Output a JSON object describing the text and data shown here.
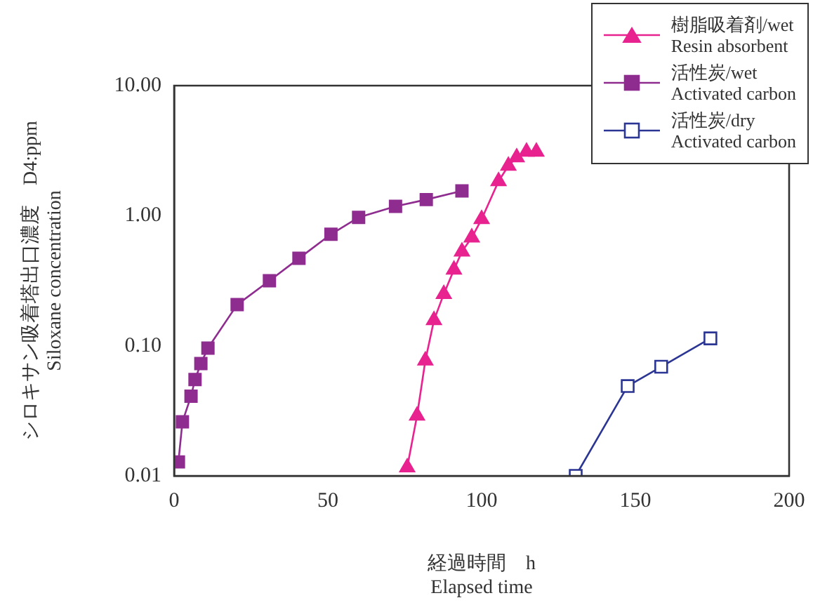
{
  "chart_data": {
    "type": "line",
    "xlabel": "経過時間　h\nElapsed time",
    "ylabel": "シロキサン吸着塔出口濃度　D4:ppm\nSiloxane concentration",
    "log": "y",
    "xlim": [
      0,
      200
    ],
    "xticks": [
      0,
      50,
      100,
      150,
      200
    ],
    "ylim": [
      0.01,
      10
    ],
    "yticks": [
      {
        "value": 10,
        "label": "10.00"
      },
      {
        "value": 1,
        "label": "1.00"
      },
      {
        "value": 0.1,
        "label": "0.10"
      },
      {
        "value": 0.01,
        "label": "0.01"
      }
    ],
    "grid": false,
    "legend": "top right",
    "line_style": "solid",
    "series": [
      {
        "name": "樹脂吸着剤/wet\nResin absorbent",
        "color": "#e8228f",
        "marker": "triangle",
        "x": [
          75.8,
          79,
          81.7,
          84.5,
          87.7,
          91,
          93.6,
          96.8,
          100,
          105.5,
          108.7,
          111.4,
          114.6,
          117.8
        ],
        "values": [
          0.0116,
          0.029,
          0.077,
          0.157,
          0.25,
          0.385,
          0.53,
          0.68,
          0.94,
          1.84,
          2.42,
          2.81,
          3.1,
          3.1
        ]
      },
      {
        "name": "活性炭/wet\nActivated carbon",
        "color": "#8e2c8f",
        "marker": "square",
        "x": [
          1.4,
          2.7,
          5.5,
          6.8,
          8.7,
          11,
          20.5,
          31,
          40.6,
          51,
          60,
          72,
          82,
          93.6
        ],
        "values": [
          0.0128,
          0.026,
          0.041,
          0.055,
          0.073,
          0.096,
          0.207,
          0.316,
          0.47,
          0.72,
          0.97,
          1.18,
          1.33,
          1.55
        ]
      },
      {
        "name": "活性炭/dry\nActivated carbon",
        "color": "#2b3593",
        "marker": "square",
        "x": [
          130.6,
          147.5,
          158.4,
          174.4
        ],
        "values": [
          0.01,
          0.049,
          0.069,
          0.114
        ]
      }
    ]
  }
}
